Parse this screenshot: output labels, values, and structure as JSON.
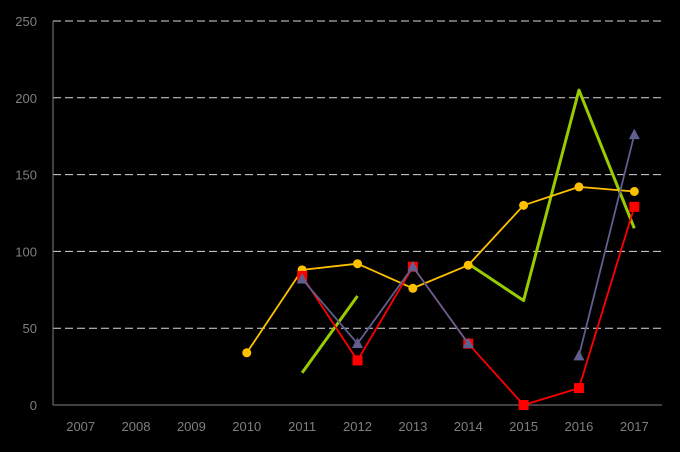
{
  "chart_data": {
    "type": "line",
    "title": "",
    "xlabel": "",
    "ylabel": "",
    "categories": [
      "2007",
      "2008",
      "2009",
      "2010",
      "2011",
      "2012",
      "2013",
      "2014",
      "2015",
      "2016",
      "2017"
    ],
    "ylim": [
      0,
      250
    ],
    "yticks": [
      "0",
      "50",
      "100",
      "150",
      "200",
      "250"
    ],
    "grid": true,
    "legend": "none",
    "series": [
      {
        "color": "#99cc00",
        "marker": "none",
        "values": [
          null,
          null,
          null,
          null,
          21,
          71,
          null,
          92,
          68,
          205,
          115
        ]
      },
      {
        "color": "#ffc000",
        "marker": "circle",
        "values": [
          null,
          null,
          null,
          34,
          88,
          92,
          76,
          91,
          130,
          142,
          139
        ]
      },
      {
        "color": "#ff0000",
        "marker": "square",
        "values": [
          null,
          null,
          null,
          null,
          84,
          29,
          90,
          40,
          0,
          11,
          129
        ]
      },
      {
        "color": "#5f5f8f",
        "marker": "triangle",
        "values": [
          null,
          null,
          null,
          null,
          82,
          40,
          90,
          40,
          null,
          32,
          176
        ]
      }
    ]
  }
}
